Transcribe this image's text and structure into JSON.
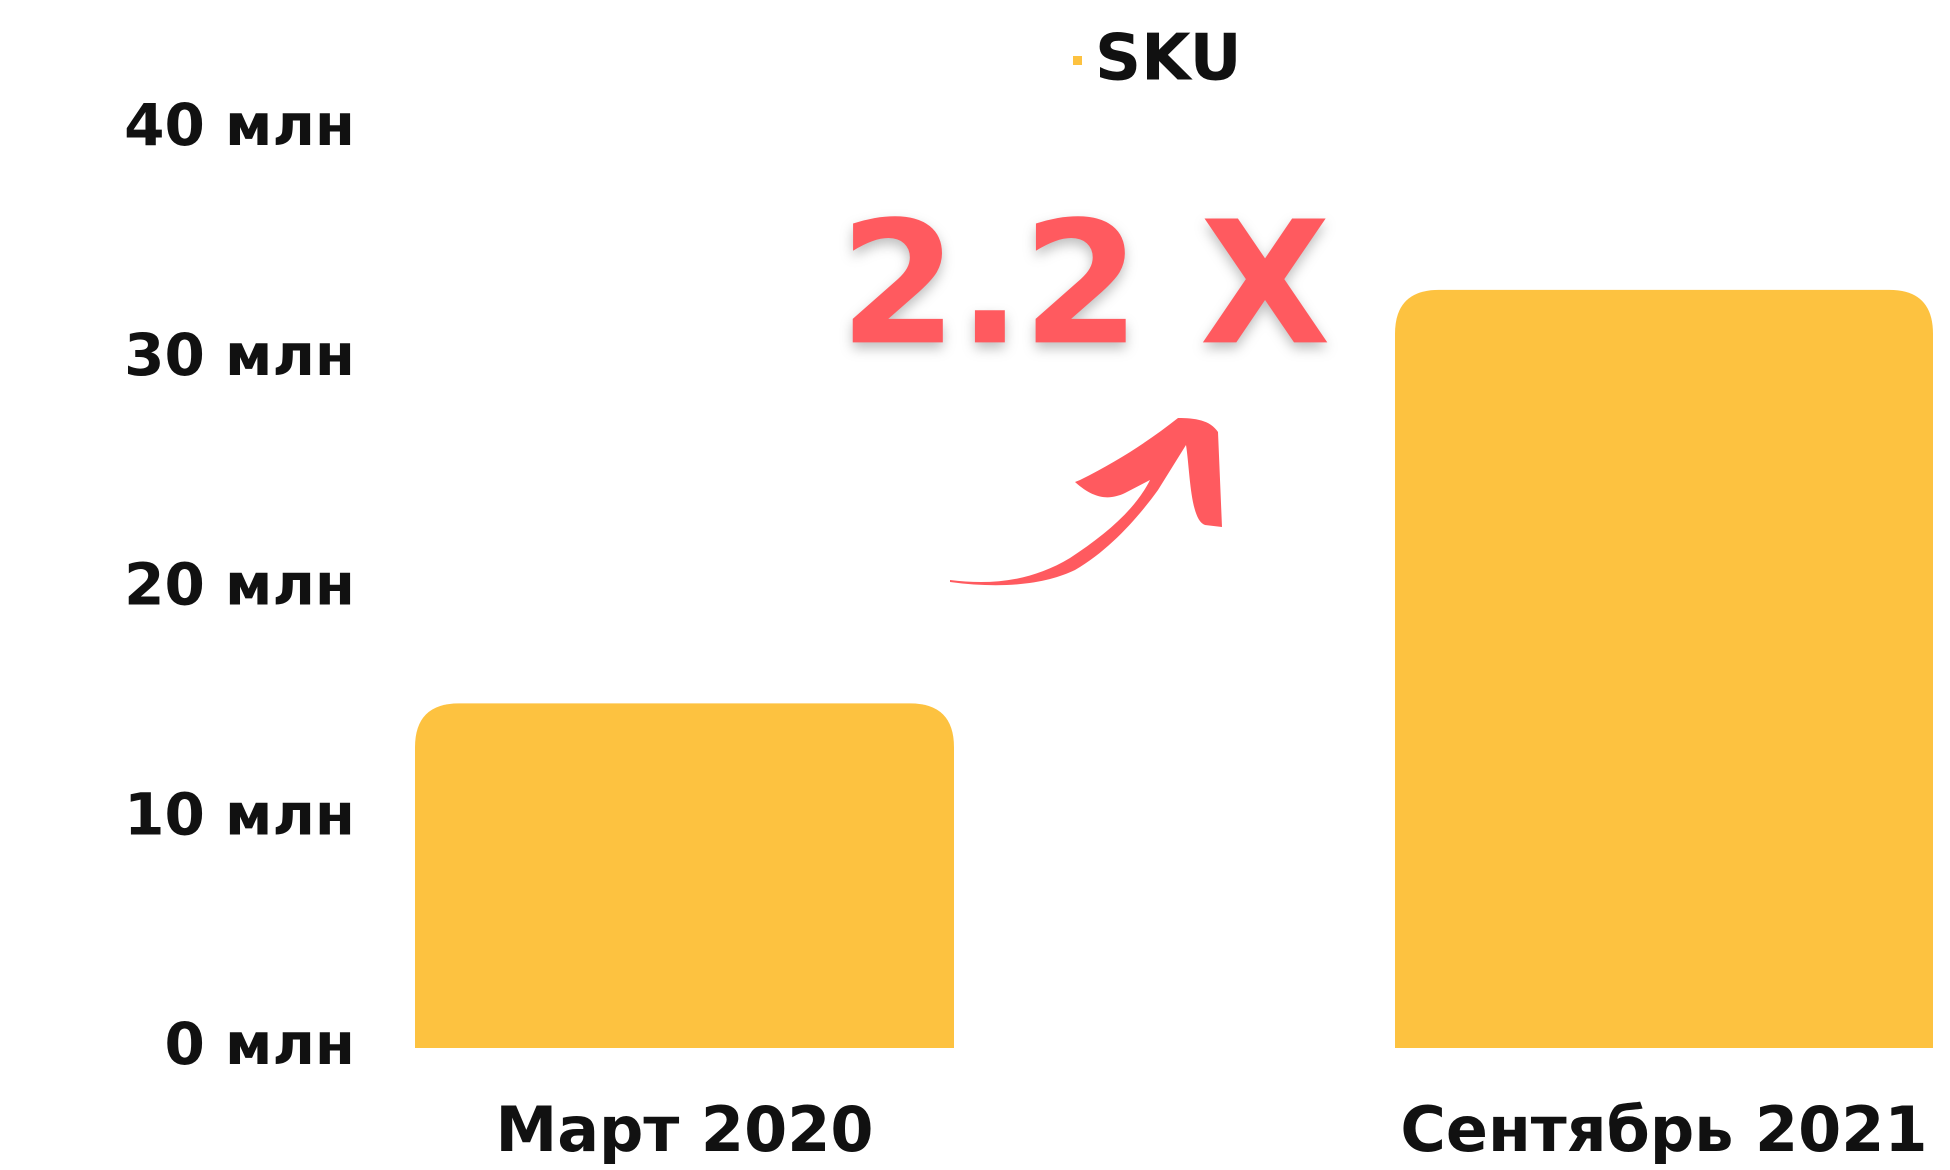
{
  "chart_data": {
    "type": "bar",
    "categories": [
      "Март 2020",
      "Сентябрь 2021"
    ],
    "series": [
      {
        "name": "SKU",
        "color": "#fdc240",
        "values": [
          15,
          33
        ]
      }
    ],
    "ylim": [
      0,
      40
    ],
    "yticks": [
      {
        "value": 0,
        "label": "0 млн"
      },
      {
        "value": 10,
        "label": "10 млн"
      },
      {
        "value": 20,
        "label": "20 млн"
      },
      {
        "value": 30,
        "label": "30 млн"
      },
      {
        "value": 40,
        "label": "40 млн"
      }
    ],
    "annotation": "2.2 X"
  }
}
